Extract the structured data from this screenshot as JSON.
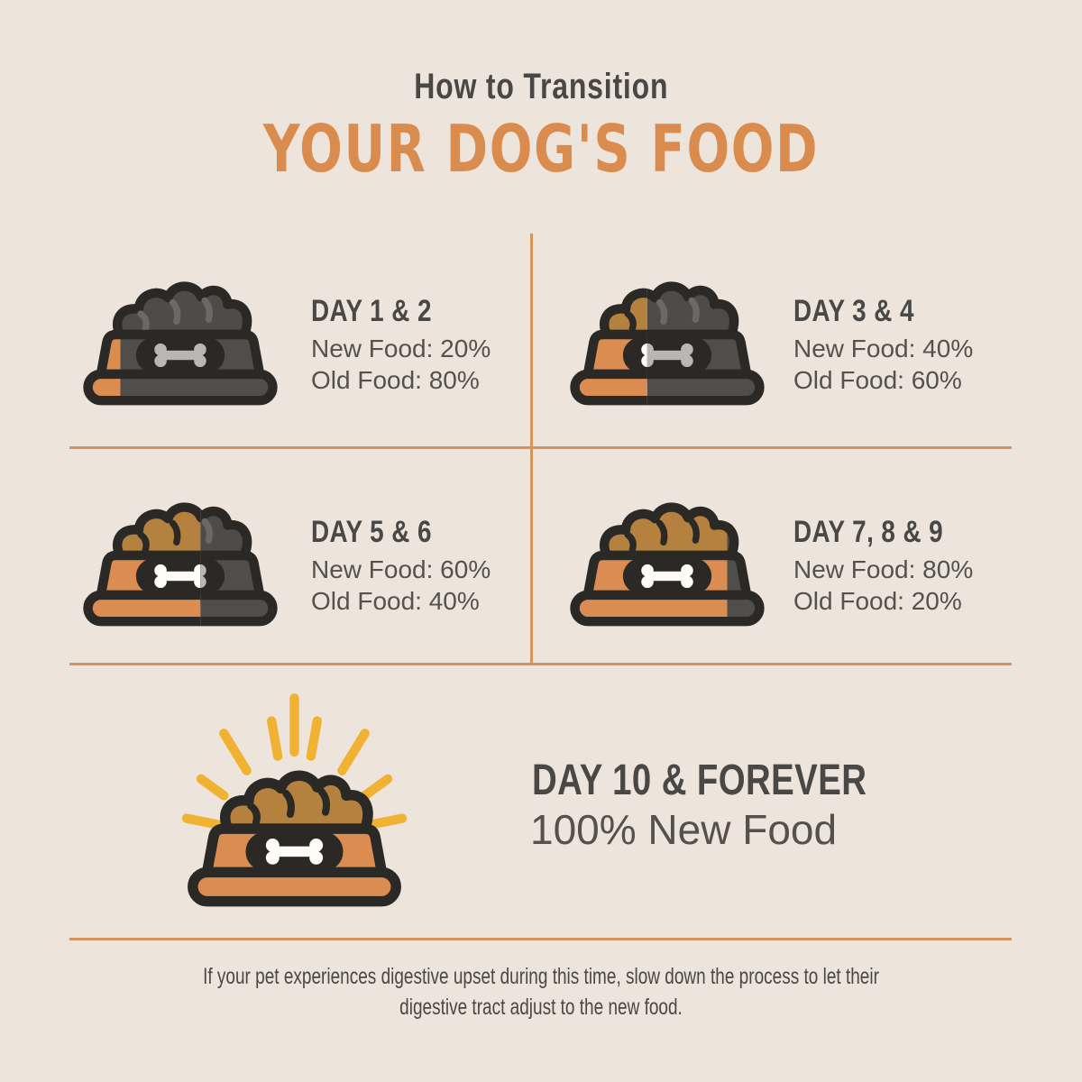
{
  "title": {
    "line1": "How to Transition",
    "line2": "YOUR DOG'S FOOD"
  },
  "steps": [
    {
      "day": "DAY 1 & 2",
      "new_food": "New Food: 20%",
      "old_food": "Old Food: 80%",
      "new_pct": 20
    },
    {
      "day": "DAY 3 & 4",
      "new_food": "New Food: 40%",
      "old_food": "Old Food: 60%",
      "new_pct": 40
    },
    {
      "day": "DAY 5 & 6",
      "new_food": "New Food: 60%",
      "old_food": "Old Food: 40%",
      "new_pct": 60
    },
    {
      "day": "DAY 7, 8 & 9",
      "new_food": "New Food: 80%",
      "old_food": "Old Food: 20%",
      "new_pct": 80
    }
  ],
  "final": {
    "day": "DAY 10 & FOREVER",
    "text": "100% New Food",
    "new_pct": 100
  },
  "footer": {
    "line1": "If your pet experiences digestive upset during this time, slow down the process to let their",
    "line2": "digestive tract adjust to the new food."
  },
  "icons": {
    "bowl": "dog-food-bowl-icon",
    "rays": "shine-rays-icon"
  },
  "colors": {
    "bg": "#EDE5DB",
    "heading": "#4A4845",
    "body": "#55514B",
    "orange": "#D98C4E",
    "divider": "#D8925C",
    "outline": "#2B2926",
    "bowl_orange": "#DB8C51",
    "food_brown": "#B5813E",
    "bowl_dark": "#504E4B",
    "food_dark": "#4E4C49",
    "bone_light": "#B9B7B3",
    "bone_white": "#FDFCF7",
    "rays": "#F0B233",
    "food_detail_dark": "#6B6966"
  }
}
